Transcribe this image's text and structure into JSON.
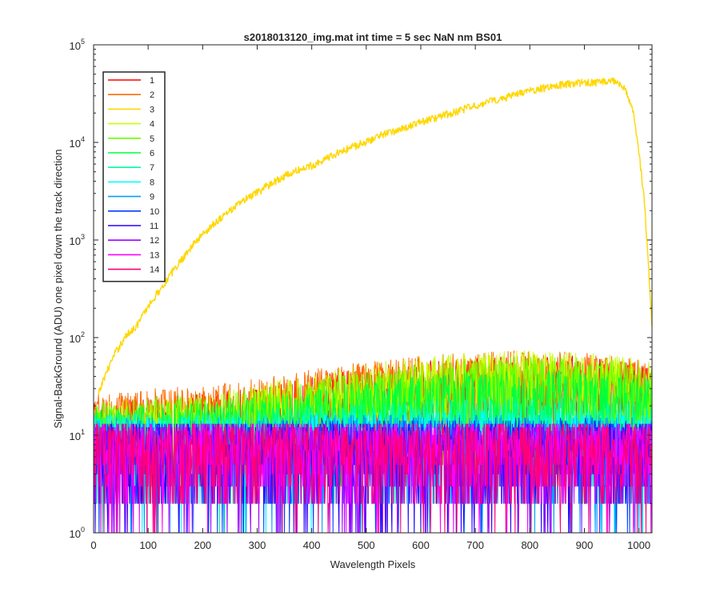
{
  "chart_data": {
    "type": "line",
    "title": "s2018013120_img.mat int time = 5 sec  NaN nm BS01",
    "xlabel": "Wavelength Pixels",
    "ylabel": "Signal-BackGround (ADU) one pixel down the track direction",
    "xlim": [
      0,
      1024
    ],
    "ylim": [
      1,
      100000
    ],
    "yscale": "log",
    "xticks": [
      0,
      100,
      200,
      300,
      400,
      500,
      600,
      700,
      800,
      900,
      1000
    ],
    "xtick_labels": [
      "0",
      "100",
      "200",
      "300",
      "400",
      "500",
      "600",
      "700",
      "800",
      "900",
      "1000"
    ],
    "yticks": [
      1,
      10,
      100,
      1000,
      10000,
      100000
    ],
    "ytick_labels": [
      {
        "base": "10",
        "exp": "0"
      },
      {
        "base": "10",
        "exp": "1"
      },
      {
        "base": "10",
        "exp": "2"
      },
      {
        "base": "10",
        "exp": "3"
      },
      {
        "base": "10",
        "exp": "4"
      },
      {
        "base": "10",
        "exp": "5"
      }
    ],
    "grid": false,
    "legend_position": "top-left",
    "series": [
      {
        "name": "1",
        "color": "#ff0000",
        "profile": "noise",
        "points": [
          [
            0,
            16
          ],
          [
            100,
            18
          ],
          [
            200,
            20
          ],
          [
            300,
            22
          ],
          [
            400,
            30
          ],
          [
            500,
            36
          ],
          [
            600,
            42
          ],
          [
            700,
            46
          ],
          [
            800,
            50
          ],
          [
            900,
            48
          ],
          [
            1000,
            40
          ],
          [
            1024,
            35
          ]
        ]
      },
      {
        "name": "2",
        "color": "#ff6a00",
        "profile": "noise",
        "points": [
          [
            0,
            20
          ],
          [
            100,
            22
          ],
          [
            200,
            24
          ],
          [
            300,
            28
          ],
          [
            400,
            35
          ],
          [
            500,
            42
          ],
          [
            600,
            48
          ],
          [
            700,
            52
          ],
          [
            800,
            55
          ],
          [
            900,
            52
          ],
          [
            1000,
            45
          ],
          [
            1024,
            40
          ]
        ]
      },
      {
        "name": "3",
        "color": "#ffd700",
        "profile": "signal",
        "points": [
          [
            8,
            25
          ],
          [
            20,
            40
          ],
          [
            40,
            70
          ],
          [
            60,
            105
          ],
          [
            80,
            135
          ],
          [
            100,
            210
          ],
          [
            125,
            330
          ],
          [
            150,
            520
          ],
          [
            175,
            800
          ],
          [
            200,
            1150
          ],
          [
            225,
            1550
          ],
          [
            250,
            2000
          ],
          [
            275,
            2550
          ],
          [
            300,
            3050
          ],
          [
            325,
            3800
          ],
          [
            350,
            4500
          ],
          [
            375,
            5200
          ],
          [
            400,
            5800
          ],
          [
            425,
            6800
          ],
          [
            450,
            7900
          ],
          [
            475,
            9000
          ],
          [
            500,
            10200
          ],
          [
            525,
            11800
          ],
          [
            550,
            13000
          ],
          [
            575,
            14500
          ],
          [
            600,
            16000
          ],
          [
            625,
            17800
          ],
          [
            650,
            19500
          ],
          [
            675,
            21500
          ],
          [
            700,
            24000
          ],
          [
            725,
            26000
          ],
          [
            750,
            28500
          ],
          [
            775,
            31000
          ],
          [
            800,
            33500
          ],
          [
            825,
            36000
          ],
          [
            850,
            38500
          ],
          [
            875,
            40000
          ],
          [
            900,
            41000
          ],
          [
            925,
            41500
          ],
          [
            950,
            42500
          ],
          [
            960,
            42000
          ],
          [
            975,
            36000
          ],
          [
            990,
            20000
          ],
          [
            1000,
            8000
          ],
          [
            1010,
            2500
          ],
          [
            1018,
            500
          ],
          [
            1024,
            130
          ]
        ]
      },
      {
        "name": "4",
        "color": "#c8ff00",
        "profile": "noise",
        "points": [
          [
            0,
            16
          ],
          [
            100,
            18
          ],
          [
            200,
            20
          ],
          [
            300,
            24
          ],
          [
            400,
            32
          ],
          [
            500,
            40
          ],
          [
            600,
            48
          ],
          [
            700,
            52
          ],
          [
            800,
            55
          ],
          [
            900,
            53
          ],
          [
            1000,
            46
          ],
          [
            1024,
            42
          ]
        ]
      },
      {
        "name": "5",
        "color": "#6aff00",
        "profile": "noise",
        "points": [
          [
            0,
            16
          ],
          [
            100,
            18
          ],
          [
            200,
            20
          ],
          [
            300,
            22
          ],
          [
            400,
            28
          ],
          [
            500,
            34
          ],
          [
            600,
            40
          ],
          [
            700,
            44
          ],
          [
            800,
            47
          ],
          [
            900,
            46
          ],
          [
            1000,
            40
          ],
          [
            1024,
            36
          ]
        ]
      },
      {
        "name": "6",
        "color": "#00ff3c",
        "profile": "noise",
        "points": [
          [
            0,
            14
          ],
          [
            100,
            15
          ],
          [
            200,
            16
          ],
          [
            300,
            18
          ],
          [
            400,
            22
          ],
          [
            500,
            26
          ],
          [
            600,
            30
          ],
          [
            700,
            33
          ],
          [
            800,
            35
          ],
          [
            900,
            34
          ],
          [
            1000,
            30
          ],
          [
            1024,
            28
          ]
        ]
      },
      {
        "name": "7",
        "color": "#00ffa0",
        "profile": "noise",
        "points": [
          [
            0,
            12
          ],
          [
            100,
            13
          ],
          [
            200,
            13
          ],
          [
            300,
            14
          ],
          [
            400,
            15
          ],
          [
            500,
            16
          ],
          [
            600,
            17
          ],
          [
            700,
            18
          ],
          [
            800,
            18
          ],
          [
            900,
            18
          ],
          [
            1000,
            16
          ],
          [
            1024,
            15
          ]
        ]
      },
      {
        "name": "8",
        "color": "#00ffff",
        "profile": "noise",
        "points": [
          [
            0,
            12
          ],
          [
            100,
            12
          ],
          [
            200,
            12
          ],
          [
            300,
            12
          ],
          [
            400,
            13
          ],
          [
            500,
            13
          ],
          [
            600,
            13
          ],
          [
            700,
            13
          ],
          [
            800,
            13
          ],
          [
            900,
            13
          ],
          [
            1000,
            12
          ],
          [
            1024,
            12
          ]
        ]
      },
      {
        "name": "9",
        "color": "#00a0ff",
        "profile": "noise",
        "points": [
          [
            0,
            11
          ],
          [
            100,
            11
          ],
          [
            200,
            11
          ],
          [
            300,
            11
          ],
          [
            400,
            12
          ],
          [
            500,
            12
          ],
          [
            600,
            12
          ],
          [
            700,
            12
          ],
          [
            800,
            12
          ],
          [
            900,
            12
          ],
          [
            1000,
            11
          ],
          [
            1024,
            11
          ]
        ]
      },
      {
        "name": "10",
        "color": "#003cff",
        "profile": "noise",
        "points": [
          [
            0,
            10
          ],
          [
            100,
            10
          ],
          [
            200,
            10
          ],
          [
            300,
            10
          ],
          [
            400,
            11
          ],
          [
            500,
            11
          ],
          [
            600,
            11
          ],
          [
            700,
            11
          ],
          [
            800,
            11
          ],
          [
            900,
            11
          ],
          [
            1000,
            10
          ],
          [
            1024,
            10
          ]
        ]
      },
      {
        "name": "11",
        "color": "#2800ff",
        "profile": "noise",
        "points": [
          [
            0,
            10
          ],
          [
            100,
            10
          ],
          [
            200,
            10
          ],
          [
            300,
            10
          ],
          [
            400,
            10
          ],
          [
            500,
            10
          ],
          [
            600,
            10
          ],
          [
            700,
            10
          ],
          [
            800,
            10
          ],
          [
            900,
            10
          ],
          [
            1000,
            10
          ],
          [
            1024,
            10
          ]
        ]
      },
      {
        "name": "12",
        "color": "#a000ff",
        "profile": "noise",
        "points": [
          [
            0,
            10
          ],
          [
            100,
            10
          ],
          [
            200,
            10
          ],
          [
            300,
            10
          ],
          [
            400,
            10
          ],
          [
            500,
            10
          ],
          [
            600,
            10
          ],
          [
            700,
            10
          ],
          [
            800,
            10
          ],
          [
            900,
            10
          ],
          [
            1000,
            10
          ],
          [
            1024,
            10
          ]
        ]
      },
      {
        "name": "13",
        "color": "#ff00ff",
        "profile": "noise",
        "points": [
          [
            0,
            10
          ],
          [
            100,
            10
          ],
          [
            200,
            10
          ],
          [
            300,
            10
          ],
          [
            400,
            10
          ],
          [
            500,
            10
          ],
          [
            600,
            10
          ],
          [
            700,
            10
          ],
          [
            800,
            10
          ],
          [
            900,
            10
          ],
          [
            1000,
            10
          ],
          [
            1024,
            10
          ]
        ]
      },
      {
        "name": "14",
        "color": "#ff0078",
        "profile": "noise",
        "points": [
          [
            0,
            10
          ],
          [
            100,
            10
          ],
          [
            200,
            10
          ],
          [
            300,
            10
          ],
          [
            400,
            10
          ],
          [
            500,
            10
          ],
          [
            600,
            10
          ],
          [
            700,
            10
          ],
          [
            800,
            10
          ],
          [
            900,
            10
          ],
          [
            1000,
            10
          ],
          [
            1024,
            10
          ]
        ]
      }
    ]
  }
}
